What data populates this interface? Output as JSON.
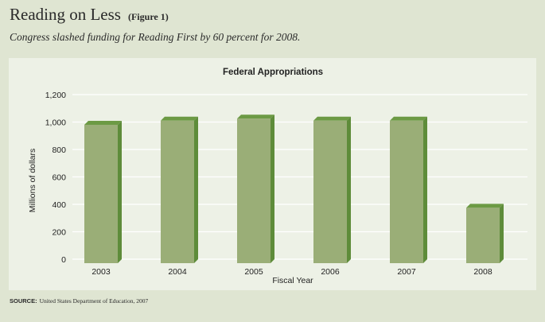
{
  "header": {
    "title": "Reading on Less",
    "figure_tag": "(Figure 1)",
    "subtitle": "Congress slashed funding for Reading First by 60 percent for 2008."
  },
  "footer": {
    "source_label": "SOURCE:",
    "source_text": "United States Department of Education, 2007"
  },
  "colors": {
    "bar_front": "#9aae77",
    "bar_side": "#5e8c3a",
    "bar_top": "#6c9a44",
    "grid": "#ffffff",
    "text": "#222222"
  },
  "chart_data": {
    "type": "bar",
    "title": "Federal Appropriations",
    "xlabel": "Fiscal Year",
    "ylabel": "Millions of dollars",
    "categories": [
      "2003",
      "2004",
      "2005",
      "2006",
      "2007",
      "2008"
    ],
    "values": [
      980,
      1010,
      1025,
      1010,
      1010,
      375
    ],
    "ylim": [
      0,
      1200
    ],
    "yticks": [
      0,
      200,
      400,
      600,
      800,
      1000,
      1200
    ],
    "ytick_labels": [
      "0",
      "200",
      "400",
      "600",
      "800",
      "1,000",
      "1,200"
    ],
    "grid": true,
    "style": "3d"
  }
}
